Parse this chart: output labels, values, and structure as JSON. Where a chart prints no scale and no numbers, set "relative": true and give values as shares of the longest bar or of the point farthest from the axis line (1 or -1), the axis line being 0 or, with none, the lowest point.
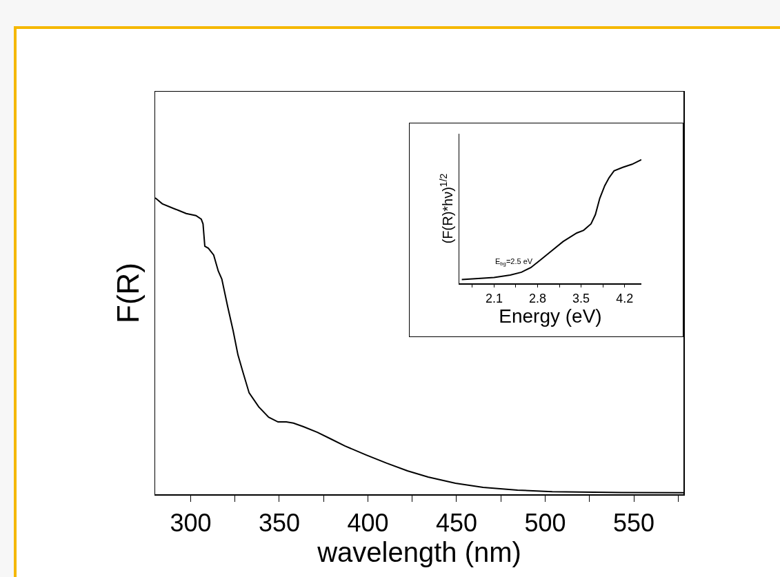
{
  "chart_data": [
    {
      "type": "line",
      "xlabel": "wavelength (nm)",
      "ylabel": "F(R)",
      "relative": true,
      "tick_labels": "x",
      "color": "#000000",
      "xlim": [
        280,
        578
      ],
      "xticks": [
        300,
        {
          "value": 325,
          "label": null
        },
        350,
        {
          "value": 375,
          "label": null
        },
        400,
        {
          "value": 425,
          "label": null
        },
        450,
        {
          "value": 475,
          "label": null
        },
        500,
        {
          "value": 525,
          "label": null
        },
        550,
        {
          "value": 575,
          "label": null
        }
      ],
      "x": [
        280,
        284,
        290,
        293,
        297.5,
        303,
        306,
        307,
        308,
        310,
        313,
        315.6,
        317.6,
        320.9,
        324,
        326.7,
        329.5,
        333,
        338.4,
        344,
        349.3,
        354,
        358,
        363.7,
        371.5,
        379.3,
        387,
        398.9,
        410.6,
        422.3,
        434,
        449.4,
        465,
        484.4,
        504,
        543,
        578
      ],
      "values": [
        1,
        0.98,
        0.965,
        0.958,
        0.947,
        0.94,
        0.928,
        0.912,
        0.837,
        0.83,
        0.807,
        0.753,
        0.726,
        0.633,
        0.551,
        0.47,
        0.412,
        0.342,
        0.295,
        0.26,
        0.244,
        0.244,
        0.24,
        0.228,
        0.209,
        0.186,
        0.163,
        0.133,
        0.105,
        0.079,
        0.058,
        0.037,
        0.023,
        0.014,
        0.009,
        0.006,
        0.005
      ]
    },
    {
      "type": "line",
      "xlabel": "Energy (eV)",
      "ylabel": "(F(R)*hν)$^{1/2}$",
      "relative": true,
      "tick_labels": "x",
      "color": "#000000",
      "xlim": [
        1.54,
        4.47
      ],
      "xticks": [
        {
          "value": 1.75,
          "label": null
        },
        2.1,
        {
          "value": 2.45,
          "label": null
        },
        2.8,
        {
          "value": 3.15,
          "label": null
        },
        3.5,
        {
          "value": 3.85,
          "label": null
        },
        4.2
      ],
      "x": [
        1.58,
        1.8,
        2.1,
        2.36,
        2.54,
        2.69,
        2.84,
        2.99,
        3.21,
        3.43,
        3.54,
        3.66,
        3.73,
        3.8,
        3.88,
        3.95,
        4.03,
        4.17,
        4.32,
        4.47
      ],
      "values": [
        0.03,
        0.037,
        0.047,
        0.067,
        0.09,
        0.127,
        0.187,
        0.248,
        0.338,
        0.407,
        0.429,
        0.481,
        0.556,
        0.687,
        0.789,
        0.854,
        0.91,
        0.938,
        0.963,
        1
      ],
      "annotations": [
        "E$_{bg}$=2.5 eV"
      ]
    }
  ]
}
